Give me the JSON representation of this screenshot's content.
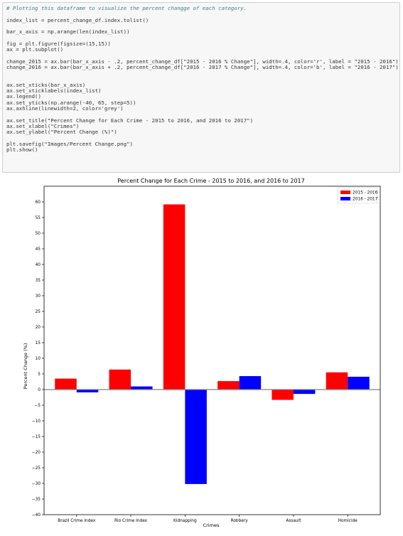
{
  "code": [
    {
      "text": "# Plotting this dataframe to visualize the percent changge of each category.",
      "kind": "comment"
    },
    {
      "text": "",
      "kind": "blank"
    },
    {
      "text": "index_list = percent_change_df.index.tolist()",
      "kind": "code"
    },
    {
      "text": "",
      "kind": "blank"
    },
    {
      "text": "bar_x_axis = np.arange(len(index_list))",
      "kind": "code"
    },
    {
      "text": "",
      "kind": "blank"
    },
    {
      "text": "fig = plt.figure(figsize=(15,15))",
      "kind": "code"
    },
    {
      "text": "ax = plt.subplot()",
      "kind": "code"
    },
    {
      "text": "",
      "kind": "blank"
    },
    {
      "text": "change_2015 = ax.bar(bar_x_axis - .2, percent_change_df[\"2015 - 2016 % Change\"], width=.4, color='r', label = \"2015 - 2016\")",
      "kind": "code"
    },
    {
      "text": "change_2016 = ax.bar(bar_x_axis + .2, percent_change_df[\"2016 - 2017 % Change\"], width=.4, color='b', label = \"2016 - 2017\")",
      "kind": "code"
    },
    {
      "text": "",
      "kind": "blank"
    },
    {
      "text": "",
      "kind": "blank"
    },
    {
      "text": "ax.set_xticks(bar_x_axis)",
      "kind": "code"
    },
    {
      "text": "ax.set_xticklabels(index_list)",
      "kind": "code"
    },
    {
      "text": "ax.legend()",
      "kind": "code"
    },
    {
      "text": "ax.set_yticks(np.arange(-40, 65, step=5))",
      "kind": "code"
    },
    {
      "text": "ax.axhline(linewidth=2, color='grey')",
      "kind": "code"
    },
    {
      "text": "",
      "kind": "blank"
    },
    {
      "text": "ax.set_title(\"Percent Change for Each Crime - 2015 to 2016, and 2016 to 2017\")",
      "kind": "code"
    },
    {
      "text": "ax.set_xlabel(\"Crimes\")",
      "kind": "code"
    },
    {
      "text": "ax.set_ylabel(\"Percent Change (%)\")",
      "kind": "code"
    },
    {
      "text": "",
      "kind": "blank"
    },
    {
      "text": "plt.savefig(\"Images/Percent Change.png\")",
      "kind": "code"
    },
    {
      "text": "plt.show()",
      "kind": "code"
    }
  ],
  "chart_data": {
    "type": "bar",
    "title": "Percent Change for Each Crime - 2015 to 2016, and 2016 to 2017",
    "xlabel": "Crimes",
    "ylabel": "Percent Change (%)",
    "categories": [
      "Brazil Crime Index",
      "Rio Crime Index",
      "Kidnapping",
      "Robbery",
      "Assault",
      "Homicide"
    ],
    "series": [
      {
        "name": "2015 - 2016",
        "color": "#ff0000",
        "values": [
          3.5,
          6.4,
          59.2,
          2.7,
          -3.3,
          5.5
        ]
      },
      {
        "name": "2016 - 2017",
        "color": "#0000ff",
        "values": [
          -0.9,
          1.0,
          -30.2,
          4.3,
          -1.4,
          4.1
        ]
      }
    ],
    "ylim": [
      -40,
      65
    ],
    "yticks": [
      -40,
      -35,
      -30,
      -25,
      -20,
      -15,
      -10,
      -5,
      0,
      5,
      10,
      15,
      20,
      25,
      30,
      35,
      40,
      45,
      50,
      55,
      60
    ],
    "bar_width": 0.4,
    "axhline": {
      "y": 0,
      "color": "#808080"
    },
    "legend": "upper right",
    "grid": false
  }
}
